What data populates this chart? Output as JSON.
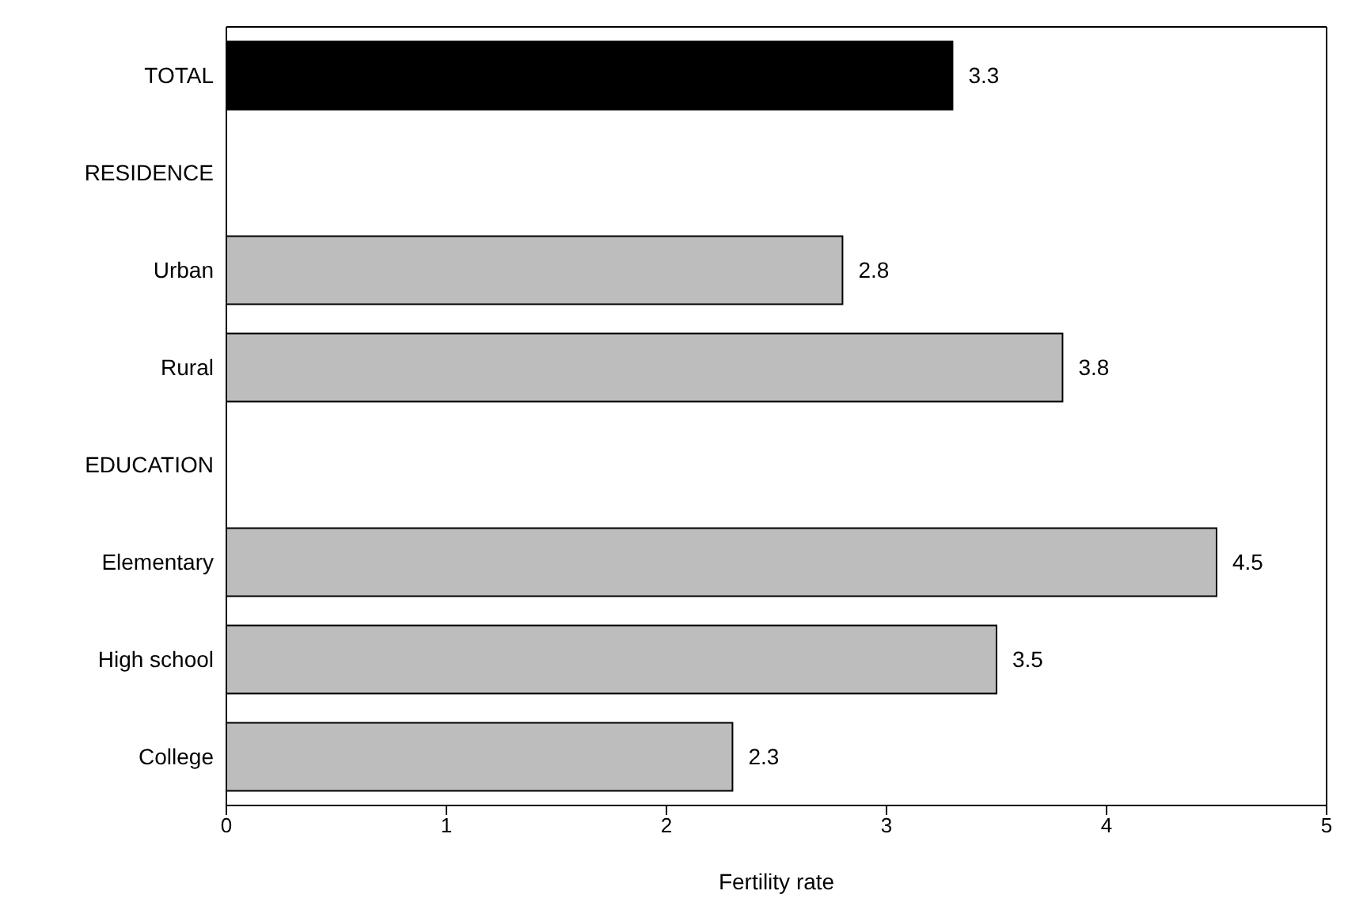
{
  "chart_data": {
    "type": "bar",
    "orientation": "horizontal",
    "xlabel": "Fertility rate",
    "categories": [
      "TOTAL",
      "RESIDENCE",
      "Urban",
      "Rural",
      "EDUCATION",
      "Elementary",
      "High school",
      "College"
    ],
    "values": [
      3.3,
      null,
      2.8,
      3.8,
      null,
      4.5,
      3.5,
      2.3
    ],
    "colors": [
      "#000000",
      "#bdbdbd",
      "#bdbdbd",
      "#bdbdbd",
      "#bdbdbd",
      "#bdbdbd",
      "#bdbdbd",
      "#bdbdbd"
    ],
    "xlim": [
      0,
      5
    ],
    "xticks": [
      0,
      1,
      2,
      3,
      4,
      5
    ],
    "data_labels": true,
    "grid": false,
    "legend": false
  }
}
